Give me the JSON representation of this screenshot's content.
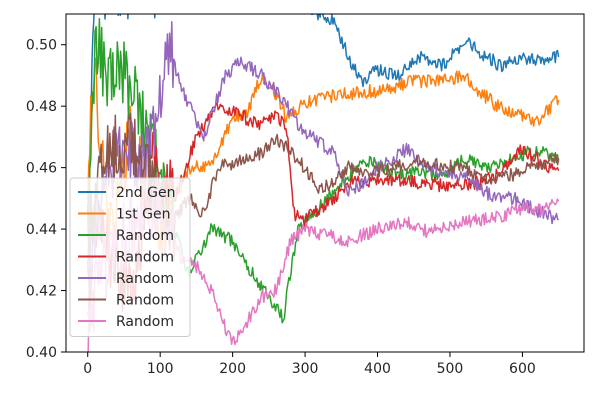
{
  "chart_data": {
    "type": "line",
    "title": "",
    "xlabel": "",
    "ylabel": "",
    "xlim": [
      -30,
      685
    ],
    "ylim": [
      0.4,
      0.51
    ],
    "xticks": [
      0,
      100,
      200,
      300,
      400,
      500,
      600
    ],
    "yticks": [
      0.4,
      0.42,
      0.44,
      0.46,
      0.48,
      0.5
    ],
    "xtick_labels": [
      "0",
      "100",
      "200",
      "300",
      "400",
      "500",
      "600"
    ],
    "ytick_labels": [
      "0.40",
      "0.42",
      "0.44",
      "0.46",
      "0.48",
      "0.50"
    ],
    "grid": false,
    "legend_position": "lower left",
    "series": [
      {
        "name": "2nd Gen",
        "color": "#1f77b4",
        "points": [
          [
            0,
            0.44
          ],
          [
            10,
            0.52
          ],
          [
            30,
            0.52
          ],
          [
            60,
            0.52
          ],
          [
            100,
            0.52
          ],
          [
            150,
            0.52
          ],
          [
            200,
            0.515
          ],
          [
            250,
            0.515
          ],
          [
            300,
            0.512
          ],
          [
            340,
            0.508
          ],
          [
            360,
            0.496
          ],
          [
            380,
            0.488
          ],
          [
            400,
            0.492
          ],
          [
            430,
            0.49
          ],
          [
            460,
            0.496
          ],
          [
            490,
            0.493
          ],
          [
            520,
            0.501
          ],
          [
            540,
            0.498
          ],
          [
            570,
            0.493
          ],
          [
            600,
            0.496
          ],
          [
            630,
            0.495
          ],
          [
            650,
            0.496
          ]
        ]
      },
      {
        "name": "1st Gen",
        "color": "#ff7f0e",
        "points": [
          [
            0,
            0.46
          ],
          [
            10,
            0.49
          ],
          [
            30,
            0.44
          ],
          [
            60,
            0.47
          ],
          [
            100,
            0.44
          ],
          [
            140,
            0.46
          ],
          [
            170,
            0.46
          ],
          [
            200,
            0.476
          ],
          [
            220,
            0.478
          ],
          [
            240,
            0.49
          ],
          [
            260,
            0.484
          ],
          [
            275,
            0.476
          ],
          [
            300,
            0.481
          ],
          [
            350,
            0.484
          ],
          [
            400,
            0.485
          ],
          [
            450,
            0.488
          ],
          [
            480,
            0.488
          ],
          [
            520,
            0.49
          ],
          [
            540,
            0.485
          ],
          [
            560,
            0.481
          ],
          [
            580,
            0.478
          ],
          [
            600,
            0.477
          ],
          [
            620,
            0.475
          ],
          [
            640,
            0.48
          ],
          [
            650,
            0.482
          ]
        ]
      },
      {
        "name": "Random",
        "color": "#2ca02c",
        "points": [
          [
            0,
            0.43
          ],
          [
            10,
            0.5
          ],
          [
            30,
            0.49
          ],
          [
            50,
            0.49
          ],
          [
            70,
            0.48
          ],
          [
            100,
            0.46
          ],
          [
            120,
            0.44
          ],
          [
            140,
            0.425
          ],
          [
            150,
            0.43
          ],
          [
            170,
            0.44
          ],
          [
            200,
            0.436
          ],
          [
            220,
            0.428
          ],
          [
            250,
            0.418
          ],
          [
            270,
            0.411
          ],
          [
            290,
            0.44
          ],
          [
            320,
            0.447
          ],
          [
            350,
            0.455
          ],
          [
            380,
            0.462
          ],
          [
            400,
            0.461
          ],
          [
            430,
            0.457
          ],
          [
            460,
            0.459
          ],
          [
            490,
            0.457
          ],
          [
            520,
            0.463
          ],
          [
            550,
            0.46
          ],
          [
            580,
            0.462
          ],
          [
            610,
            0.465
          ],
          [
            630,
            0.465
          ],
          [
            650,
            0.462
          ]
        ]
      },
      {
        "name": "Random",
        "color": "#d62728",
        "points": [
          [
            0,
            0.42
          ],
          [
            10,
            0.44
          ],
          [
            30,
            0.43
          ],
          [
            60,
            0.42
          ],
          [
            90,
            0.46
          ],
          [
            120,
            0.45
          ],
          [
            150,
            0.47
          ],
          [
            180,
            0.48
          ],
          [
            200,
            0.478
          ],
          [
            220,
            0.476
          ],
          [
            240,
            0.474
          ],
          [
            260,
            0.478
          ],
          [
            275,
            0.472
          ],
          [
            285,
            0.445
          ],
          [
            300,
            0.443
          ],
          [
            330,
            0.448
          ],
          [
            360,
            0.455
          ],
          [
            400,
            0.456
          ],
          [
            430,
            0.456
          ],
          [
            460,
            0.455
          ],
          [
            500,
            0.454
          ],
          [
            540,
            0.455
          ],
          [
            570,
            0.458
          ],
          [
            600,
            0.466
          ],
          [
            630,
            0.461
          ],
          [
            650,
            0.459
          ]
        ]
      },
      {
        "name": "Random",
        "color": "#9467bd",
        "points": [
          [
            0,
            0.42
          ],
          [
            10,
            0.44
          ],
          [
            30,
            0.46
          ],
          [
            50,
            0.47
          ],
          [
            80,
            0.46
          ],
          [
            110,
            0.5
          ],
          [
            140,
            0.48
          ],
          [
            160,
            0.47
          ],
          [
            190,
            0.49
          ],
          [
            210,
            0.495
          ],
          [
            240,
            0.49
          ],
          [
            270,
            0.482
          ],
          [
            290,
            0.474
          ],
          [
            310,
            0.47
          ],
          [
            340,
            0.465
          ],
          [
            360,
            0.452
          ],
          [
            380,
            0.455
          ],
          [
            400,
            0.46
          ],
          [
            440,
            0.466
          ],
          [
            470,
            0.46
          ],
          [
            500,
            0.458
          ],
          [
            530,
            0.456
          ],
          [
            560,
            0.45
          ],
          [
            590,
            0.45
          ],
          [
            620,
            0.446
          ],
          [
            650,
            0.443
          ]
        ]
      },
      {
        "name": "Random",
        "color": "#8c564b",
        "points": [
          [
            0,
            0.44
          ],
          [
            20,
            0.46
          ],
          [
            50,
            0.47
          ],
          [
            80,
            0.46
          ],
          [
            110,
            0.44
          ],
          [
            140,
            0.45
          ],
          [
            160,
            0.445
          ],
          [
            180,
            0.46
          ],
          [
            210,
            0.462
          ],
          [
            240,
            0.465
          ],
          [
            260,
            0.47
          ],
          [
            280,
            0.465
          ],
          [
            300,
            0.46
          ],
          [
            320,
            0.452
          ],
          [
            340,
            0.456
          ],
          [
            360,
            0.46
          ],
          [
            390,
            0.458
          ],
          [
            420,
            0.46
          ],
          [
            450,
            0.462
          ],
          [
            480,
            0.461
          ],
          [
            510,
            0.46
          ],
          [
            540,
            0.458
          ],
          [
            560,
            0.456
          ],
          [
            590,
            0.458
          ],
          [
            620,
            0.461
          ],
          [
            650,
            0.463
          ]
        ]
      },
      {
        "name": "Random",
        "color": "#e377c2",
        "points": [
          [
            0,
            0.4
          ],
          [
            10,
            0.42
          ],
          [
            30,
            0.43
          ],
          [
            60,
            0.44
          ],
          [
            90,
            0.45
          ],
          [
            110,
            0.44
          ],
          [
            130,
            0.43
          ],
          [
            150,
            0.428
          ],
          [
            170,
            0.42
          ],
          [
            190,
            0.408
          ],
          [
            200,
            0.403
          ],
          [
            220,
            0.41
          ],
          [
            240,
            0.418
          ],
          [
            260,
            0.42
          ],
          [
            280,
            0.436
          ],
          [
            300,
            0.44
          ],
          [
            330,
            0.438
          ],
          [
            360,
            0.436
          ],
          [
            400,
            0.44
          ],
          [
            440,
            0.442
          ],
          [
            470,
            0.439
          ],
          [
            500,
            0.441
          ],
          [
            540,
            0.443
          ],
          [
            570,
            0.444
          ],
          [
            600,
            0.447
          ],
          [
            630,
            0.446
          ],
          [
            650,
            0.449
          ]
        ]
      }
    ]
  }
}
